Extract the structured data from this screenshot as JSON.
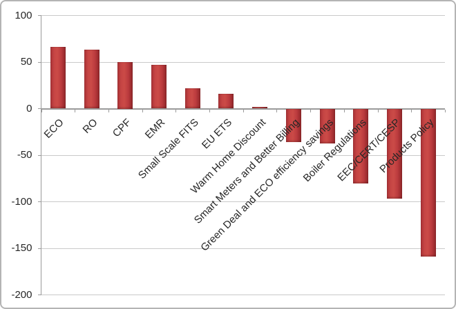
{
  "chart": {
    "background_color": "#ffffff",
    "border_color": "#b4b4b4",
    "bar_body_color": "#c23a3d",
    "bar_edge_color": "#8f2629",
    "grid_color": "#c9c9c9",
    "axis_color": "#9a9a9a",
    "label_color": "#262626"
  },
  "chart_data": {
    "type": "bar",
    "title": "",
    "xlabel": "",
    "ylabel": "",
    "categories": [
      "ECO",
      "RO",
      "CPF",
      "EMR",
      "Small Scale FITS",
      "EU ETS",
      "Warm Home Discount",
      "Smart Meters and Better Billing",
      "Green Deal and ECO efficiency savings",
      "Boiler Regulations",
      "EEC/CERT/CESP",
      "Products Policy"
    ],
    "values": [
      66,
      63,
      50,
      47,
      22,
      16,
      2,
      -35,
      -37,
      -80,
      -96,
      -158
    ],
    "ylim": [
      -200,
      100
    ],
    "yticks": [
      100,
      50,
      0,
      -50,
      -100,
      -150,
      -200
    ],
    "grid": true,
    "legend": "none",
    "bar_orientation": "vertical",
    "x_label_rotation_deg": 45
  }
}
